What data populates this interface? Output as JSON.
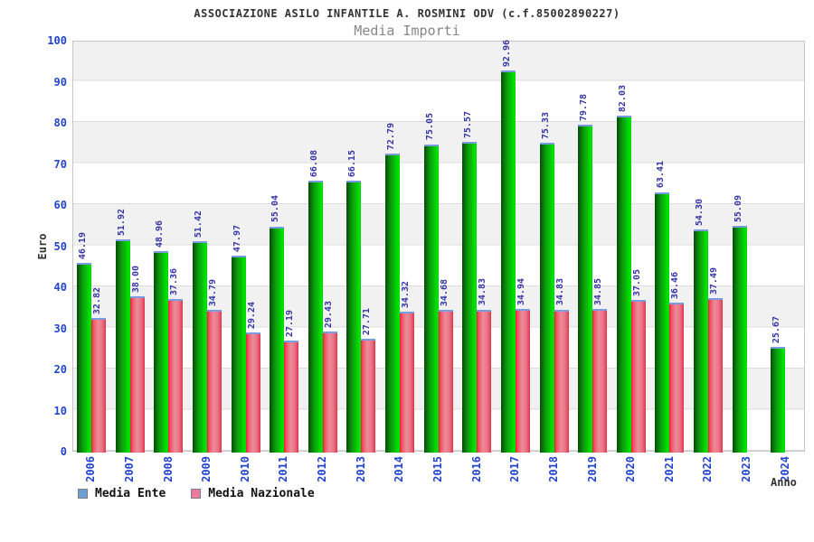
{
  "header": {
    "title": "ASSOCIAZIONE ASILO INFANTILE A. ROSMINI ODV (c.f.85002890227)",
    "subtitle": "Media Importi"
  },
  "axis": {
    "y_title": "Euro",
    "x_title": "Anno",
    "y_ticks": [
      0,
      10,
      20,
      30,
      40,
      50,
      60,
      70,
      80,
      90,
      100
    ]
  },
  "legend": {
    "items": [
      {
        "label": "Media Ente",
        "swatch_color": "#6e9ed6"
      },
      {
        "label": "Media Nazionale",
        "swatch_color": "#ea7b9c"
      }
    ]
  },
  "colors": {
    "bar_ente_main": "#00c400",
    "bar_nazionale_main": "#e2334a",
    "bar_cap": "#7b9be0",
    "value_label": "#3535a5",
    "axis_tick_label": "#2244cc",
    "band_gray": "#f1f1f1",
    "gridline": "#dcdcdc",
    "title_text": "#333333",
    "subtitle_text": "#878787"
  },
  "chart_data": {
    "type": "bar",
    "title": "Media Importi",
    "suptitle": "ASSOCIAZIONE ASILO INFANTILE A. ROSMINI ODV (c.f.85002890227)",
    "xlabel": "Anno",
    "ylabel": "Euro",
    "ylim": [
      0,
      100
    ],
    "y_tick_step": 10,
    "grid": true,
    "legend_position": "bottom-left",
    "categories": [
      "2006",
      "2007",
      "2008",
      "2009",
      "2010",
      "2011",
      "2012",
      "2013",
      "2014",
      "2015",
      "2016",
      "2017",
      "2018",
      "2019",
      "2020",
      "2021",
      "2022",
      "2023",
      "2024"
    ],
    "series": [
      {
        "name": "Media Ente",
        "values": [
          46.19,
          51.92,
          48.96,
          51.42,
          47.97,
          55.04,
          66.08,
          66.15,
          72.79,
          75.05,
          75.57,
          92.96,
          75.33,
          79.78,
          82.03,
          63.41,
          54.3,
          55.09,
          25.67
        ]
      },
      {
        "name": "Media Nazionale",
        "values": [
          32.82,
          38.0,
          37.36,
          34.79,
          29.24,
          27.19,
          29.43,
          27.71,
          34.32,
          34.68,
          34.83,
          34.94,
          34.83,
          34.85,
          37.05,
          36.46,
          37.49,
          null,
          null
        ]
      }
    ]
  }
}
